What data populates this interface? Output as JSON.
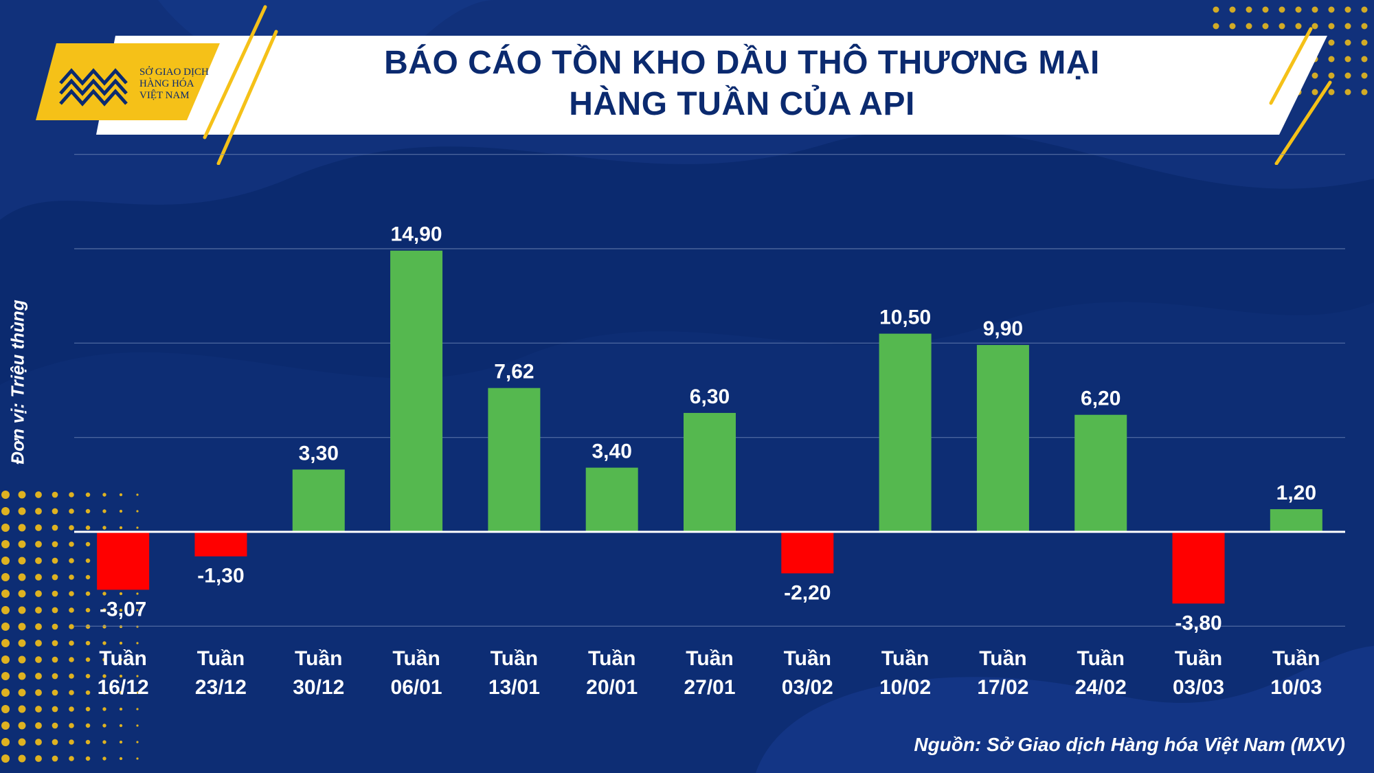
{
  "title": {
    "line1": "BÁO CÁO TỒN KHO DẦU THÔ THƯƠNG MẠI",
    "line2": "HÀNG TUẦN CỦA API"
  },
  "logo": {
    "line1": "SỞ GIAO DỊCH",
    "line2": "HÀNG HÓA",
    "line3": "VIỆT NAM"
  },
  "source": "Nguồn: Sở Giao dịch Hàng hóa Việt Nam (MXV)",
  "colors": {
    "background": "#0b2a6f",
    "positive": "#55b84f",
    "negative": "#ff0000",
    "accent": "#f5c118"
  },
  "chart_data": {
    "type": "bar",
    "ylabel": "Đơn vị: Triệu thùng",
    "ylim": [
      -10,
      20
    ],
    "grid": true,
    "categories": [
      [
        "Tuần",
        "16/12"
      ],
      [
        "Tuần",
        "23/12"
      ],
      [
        "Tuần",
        "30/12"
      ],
      [
        "Tuần",
        "06/01"
      ],
      [
        "Tuần",
        "13/01"
      ],
      [
        "Tuần",
        "20/01"
      ],
      [
        "Tuần",
        "27/01"
      ],
      [
        "Tuần",
        "03/02"
      ],
      [
        "Tuần",
        "10/02"
      ],
      [
        "Tuần",
        "17/02"
      ],
      [
        "Tuần",
        "24/02"
      ],
      [
        "Tuần",
        "03/03"
      ],
      [
        "Tuần",
        "10/03"
      ]
    ],
    "values": [
      -3.07,
      -1.3,
      3.3,
      14.9,
      7.62,
      3.4,
      6.3,
      -2.2,
      10.5,
      9.9,
      6.2,
      -3.8,
      1.2
    ],
    "labels": [
      "-3,07",
      "-1,30",
      "3,30",
      "14,90",
      "7,62",
      "3,40",
      "6,30",
      "-2,20",
      "10,50",
      "9,90",
      "6,20",
      "-3,80",
      "1,20"
    ]
  }
}
